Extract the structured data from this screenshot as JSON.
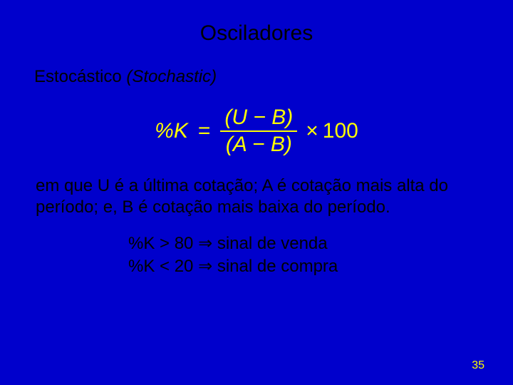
{
  "background_color": "#0000cc",
  "text_color": "#000000",
  "accent_color": "#ffff00",
  "title": "Osciladores",
  "subtitle_plain": "Estocástico ",
  "subtitle_italic": "(Stochastic)",
  "formula": {
    "lhs": "%K",
    "eq": "=",
    "numerator": "(U − B)",
    "denominator": "(A − B)",
    "times": "×",
    "hundred": "100"
  },
  "description": "em que U é a última cotação; A é cotação mais alta do período; e, B é cotação mais baixa do período.",
  "signals": {
    "line1_pre": "%K > 80 ",
    "line1_arrow": "⇒",
    "line1_post": " sinal de venda",
    "line2_pre": "%K < 20 ",
    "line2_arrow": "⇒",
    "line2_post": " sinal de compra"
  },
  "page_number": "35"
}
